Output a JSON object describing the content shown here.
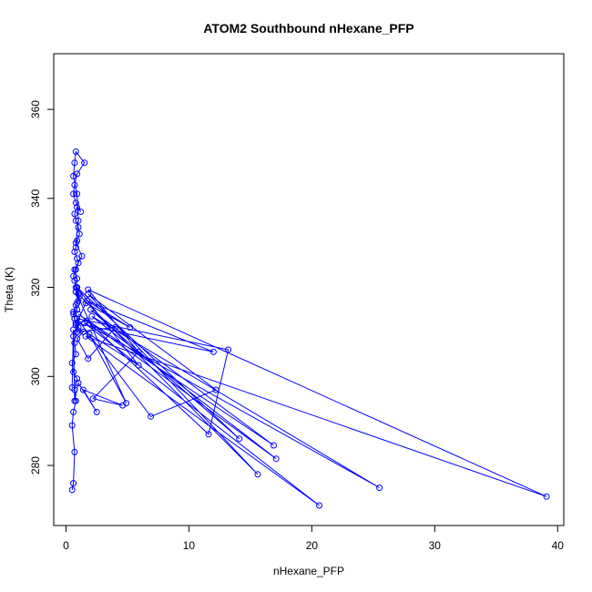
{
  "chart_data": {
    "type": "line",
    "title": "ATOM2 Southbound nHexane_PFP",
    "xlabel": "nHexane_PFP",
    "ylabel": "Theta (K)",
    "xlim": [
      -1,
      40.5
    ],
    "ylim": [
      266.5,
      372.5
    ],
    "xticks": [
      0,
      10,
      20,
      30,
      40
    ],
    "yticks": [
      280,
      300,
      320,
      340,
      360
    ],
    "grid": false,
    "color": "#0000ff",
    "series": [
      {
        "name": "",
        "x": [
          0.5,
          0.6,
          0.7,
          0.5,
          0.6,
          0.8,
          0.7,
          0.9,
          0.6,
          0.5,
          0.8,
          0.7,
          0.6,
          0.9,
          1.0,
          0.8,
          0.7,
          0.6,
          0.9,
          0.8,
          1.0,
          1.1,
          0.8,
          0.9,
          0.7,
          0.6,
          0.8,
          1.0,
          0.9,
          0.7,
          0.8,
          0.9,
          1.1,
          1.0,
          0.8,
          0.7,
          0.9,
          1.2,
          0.8,
          0.6,
          0.7,
          0.9,
          1.5,
          0.8,
          0.7,
          0.6,
          0.9,
          1.0,
          0.8,
          1.3,
          0.7,
          0.9,
          0.8,
          1.0,
          0.9,
          0.6,
          0.7,
          0.8,
          1.4,
          0.9,
          1.8,
          4.0,
          0.9,
          0.8,
          1.6,
          5.2,
          1.7,
          12.0,
          0.8,
          1.7,
          11.6,
          13.2,
          0.9,
          6.9,
          12.2,
          1.8,
          15.6,
          0.8,
          4.9,
          1.9,
          5.9,
          0.9,
          14.1,
          2.0,
          16.9,
          1.0,
          17.1,
          2.1,
          25.5,
          1.5,
          20.6,
          1.6,
          39.1,
          1.8,
          5.9,
          2.2,
          4.6,
          1.4,
          2.5,
          1.0,
          0.7,
          0.6,
          0.5
        ],
        "y": [
          274.5,
          276.0,
          283.0,
          289.0,
          292.0,
          294.5,
          297.0,
          299.5,
          301.0,
          303.0,
          305.0,
          307.5,
          309.0,
          310.0,
          311.0,
          312.0,
          313.0,
          314.0,
          315.0,
          316.0,
          317.0,
          318.0,
          319.0,
          320.0,
          321.5,
          322.5,
          324.0,
          325.5,
          326.5,
          328.0,
          329.0,
          330.5,
          332.0,
          333.5,
          335.0,
          336.5,
          338.0,
          337.0,
          339.0,
          341.0,
          343.0,
          345.5,
          348.0,
          350.5,
          348.0,
          345.0,
          341.0,
          335.0,
          330.0,
          327.0,
          324.0,
          322.0,
          320.0,
          318.5,
          316.5,
          314.5,
          313.0,
          311.5,
          310.0,
          308.5,
          304.0,
          311.0,
          310.0,
          311.5,
          316.5,
          311.0,
          317.0,
          305.5,
          312.0,
          312.5,
          287.0,
          306.0,
          313.0,
          291.0,
          297.0,
          318.5,
          278.0,
          319.0,
          294.0,
          309.5,
          302.5,
          320.0,
          286.0,
          315.0,
          284.5,
          314.0,
          281.5,
          313.5,
          275.0,
          312.0,
          271.0,
          309.0,
          273.0,
          319.5,
          305.5,
          295.0,
          293.5,
          297.0,
          292.0,
          298.5,
          294.5,
          310.5,
          297.5
        ]
      }
    ]
  }
}
